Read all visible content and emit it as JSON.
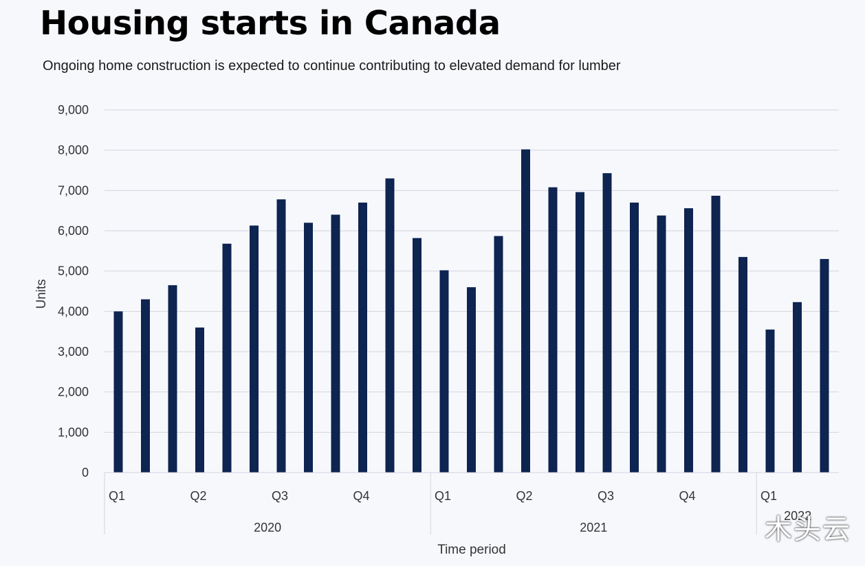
{
  "chart_data": {
    "type": "bar",
    "title": "Housing starts in Canada",
    "subtitle": "Ongoing home construction is expected to continue contributing to elevated demand for lumber",
    "xlabel": "Time period",
    "ylabel": "Units",
    "ylim": [
      0,
      9000
    ],
    "yticks": [
      0,
      1000,
      2000,
      3000,
      4000,
      5000,
      6000,
      7000,
      8000,
      9000
    ],
    "ytick_labels": [
      "0",
      "1,000",
      "2,000",
      "3,000",
      "4,000",
      "5,000",
      "6,000",
      "7,000",
      "8,000",
      "9,000"
    ],
    "grid": true,
    "color": "#0e2451",
    "values": [
      4000,
      4300,
      4650,
      3600,
      5680,
      6130,
      6780,
      6200,
      6400,
      6700,
      7300,
      5820,
      5020,
      4600,
      5870,
      8020,
      7080,
      6960,
      7430,
      6700,
      6380,
      6560,
      6870,
      5350,
      3550,
      4230,
      5300
    ],
    "quarter_labels": [
      {
        "label": "Q1",
        "index": 0
      },
      {
        "label": "Q2",
        "index": 3
      },
      {
        "label": "Q3",
        "index": 6
      },
      {
        "label": "Q4",
        "index": 9
      },
      {
        "label": "Q1",
        "index": 12
      },
      {
        "label": "Q2",
        "index": 15
      },
      {
        "label": "Q3",
        "index": 18
      },
      {
        "label": "Q4",
        "index": 21
      },
      {
        "label": "Q1",
        "index": 24
      }
    ],
    "year_groups": [
      {
        "label": "2020",
        "start": 0,
        "end": 11
      },
      {
        "label": "2021",
        "start": 12,
        "end": 23
      },
      {
        "label": "2022",
        "start": 24,
        "end": 26
      }
    ]
  },
  "watermark": "木头云"
}
